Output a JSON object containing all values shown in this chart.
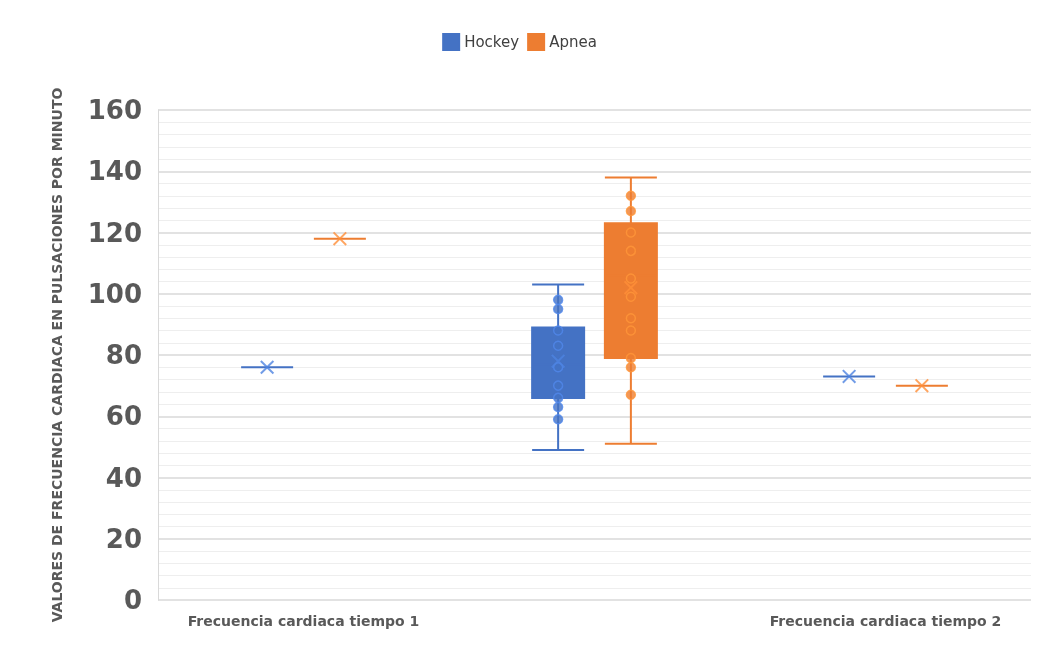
{
  "chart_data": {
    "type": "box",
    "ylabel": "VALORES DE FRECUENCIA CARDIACA EN PULSACIONES POR MINUTO",
    "categories": [
      "Frecuencia cardiaca tiempo 1",
      null,
      "Frecuencia cardiaca tiempo 2"
    ],
    "series": [
      {
        "name": "Hockey",
        "color": "#4472c4",
        "boxes": [
          {
            "low": 76,
            "q1": 76,
            "median": 76,
            "q3": 76,
            "high": 76,
            "mean": 76
          },
          {
            "low": 49,
            "q1": 66,
            "median": 77,
            "q3": 89,
            "high": 103,
            "mean": 78,
            "outliers": [
              98,
              95,
              88,
              83,
              76,
              70,
              66,
              63,
              59
            ]
          },
          {
            "low": 73,
            "q1": 73,
            "median": 73,
            "q3": 73,
            "high": 73,
            "mean": 73
          }
        ]
      },
      {
        "name": "Apnea",
        "color": "#ed7d31",
        "boxes": [
          {
            "low": 118,
            "q1": 118,
            "median": 118,
            "q3": 118,
            "high": 118,
            "mean": 118
          },
          {
            "low": 51,
            "q1": 79,
            "median": 106,
            "q3": 123,
            "high": 138,
            "mean": 102,
            "outliers": [
              132,
              127,
              120,
              114,
              105,
              99,
              92,
              88,
              79,
              76,
              67
            ]
          },
          {
            "low": 70,
            "q1": 70,
            "median": 70,
            "q3": 70,
            "high": 70,
            "mean": 70
          }
        ]
      }
    ],
    "ylim": [
      0,
      160
    ],
    "yticks": [
      0,
      20,
      40,
      60,
      80,
      100,
      120,
      140,
      160
    ],
    "grid": true,
    "legend": "top",
    "marker": "circle"
  }
}
